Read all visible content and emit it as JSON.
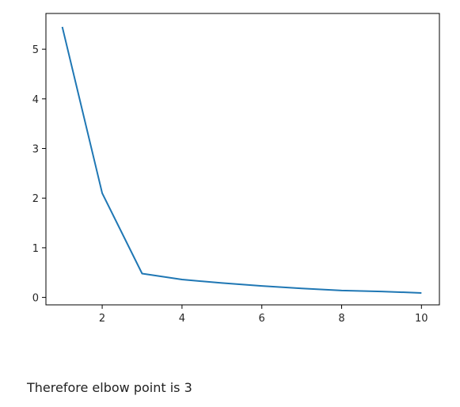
{
  "chart_data": {
    "type": "line",
    "x": [
      1,
      2,
      3,
      4,
      5,
      6,
      7,
      8,
      9,
      10
    ],
    "series": [
      {
        "values": [
          5.45,
          2.1,
          0.48,
          0.36,
          0.29,
          0.23,
          0.18,
          0.14,
          0.12,
          0.09
        ],
        "color": "#1f77b4"
      }
    ],
    "xlim": [
      0.59,
      10.45
    ],
    "ylim": [
      -0.15,
      5.72
    ],
    "xticks": [
      2,
      4,
      6,
      8,
      10
    ],
    "yticks": [
      0,
      1,
      2,
      3,
      4,
      5
    ],
    "grid": false,
    "legend": "none"
  },
  "caption": "Therefore elbow point is 3"
}
